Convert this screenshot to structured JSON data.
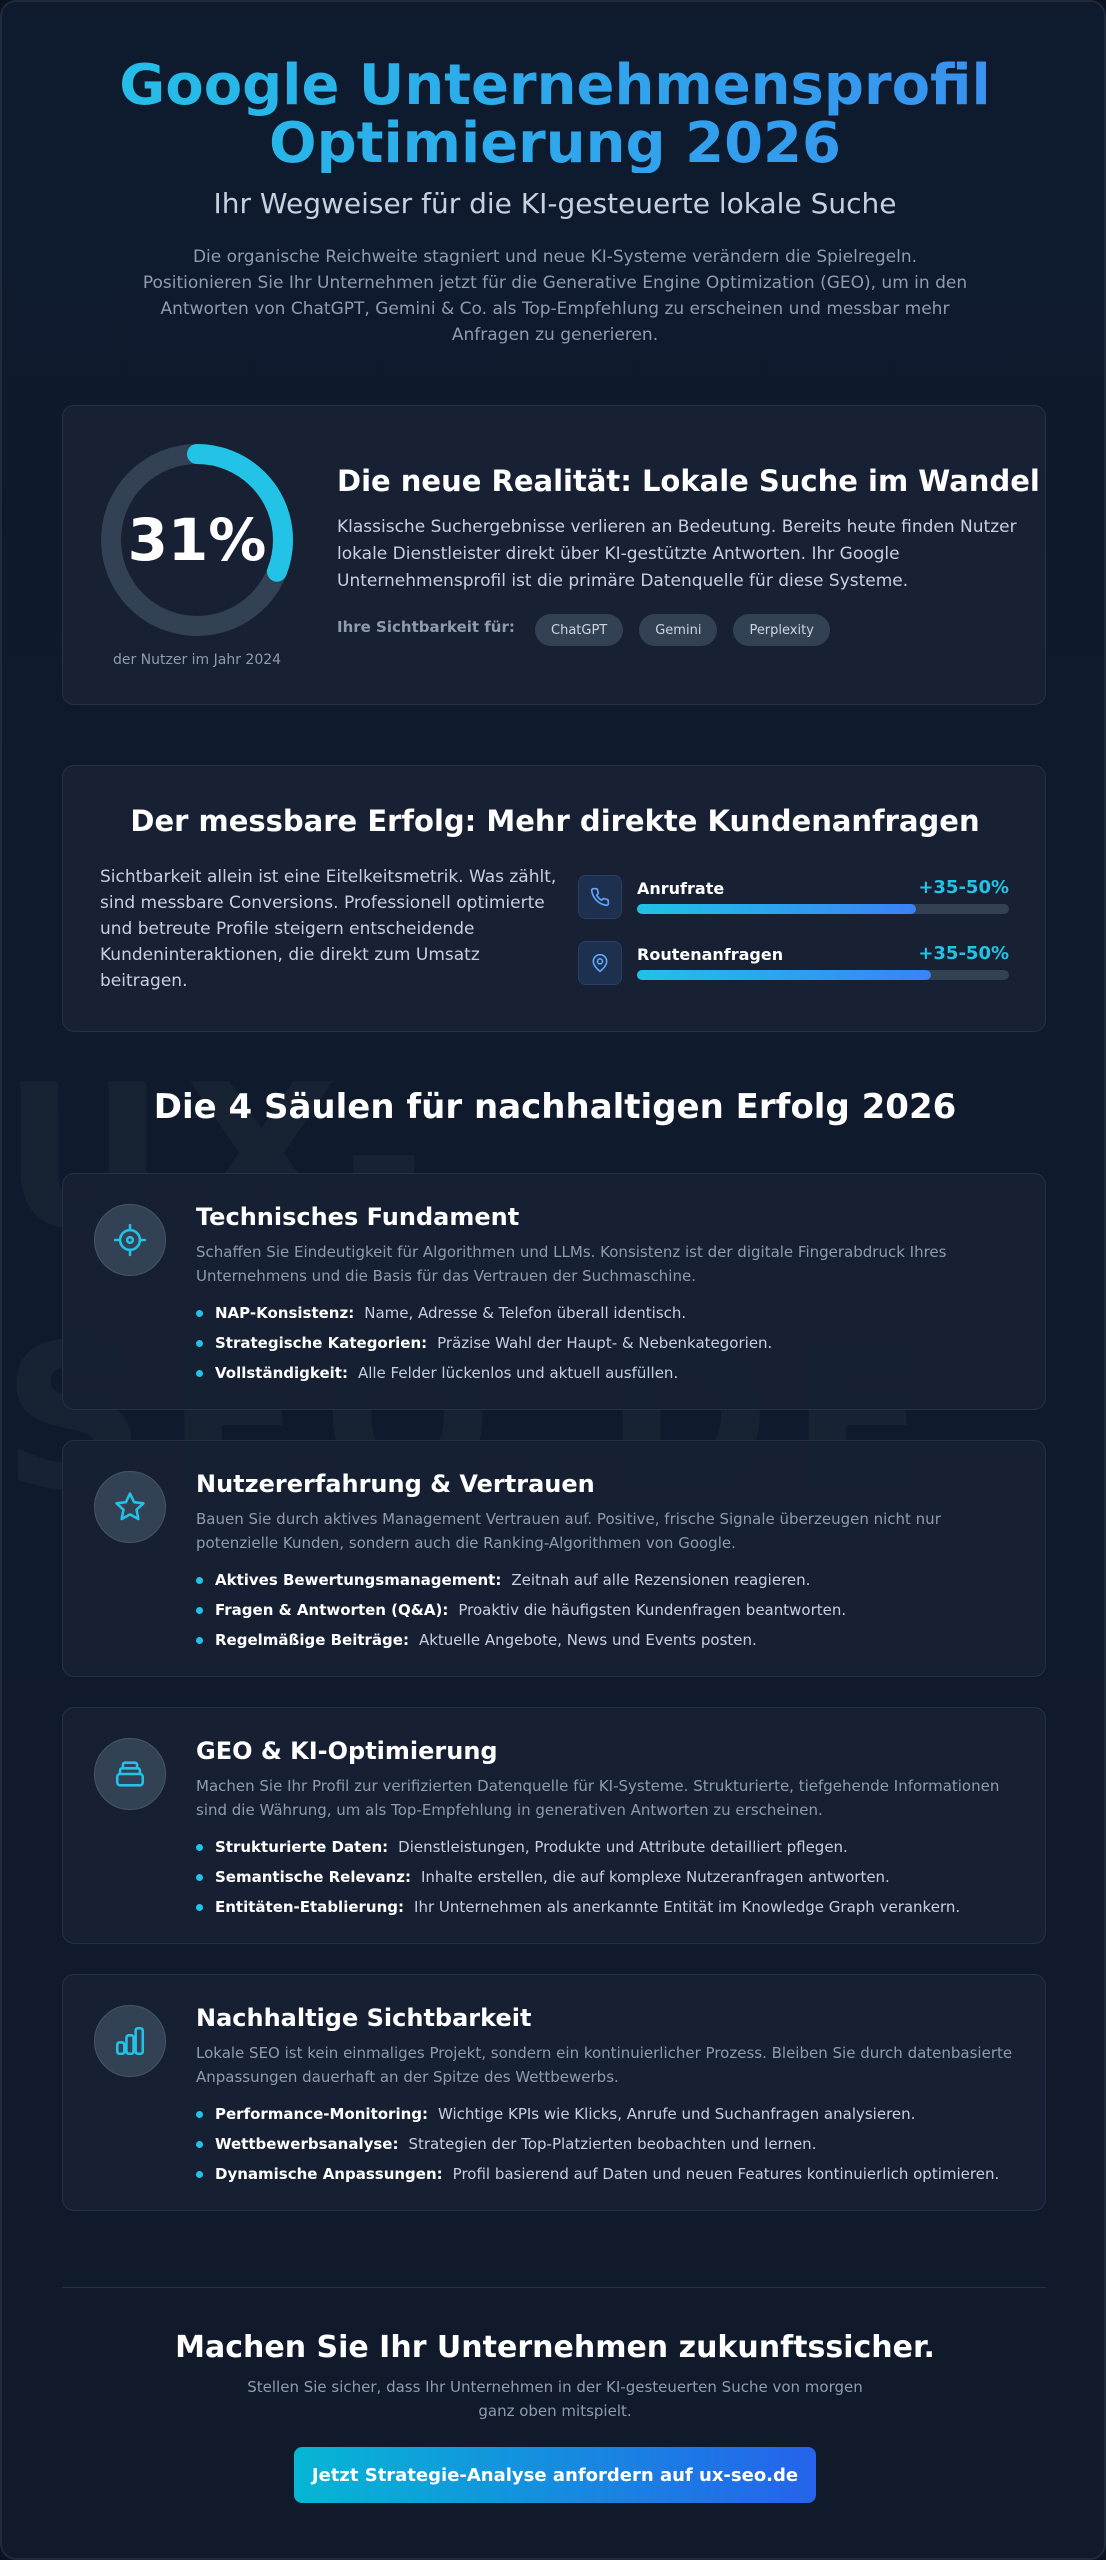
{
  "hero": {
    "title_line1": "Google Unternehmensprofil",
    "title_line2": "Optimierung 2026",
    "subtitle": "Ihr Wegweiser für die KI-gesteuerte lokale Suche",
    "intro": "Die organische Reichweite stagniert und neue KI-Systeme verändern die Spielregeln. Positionieren Sie Ihr Unternehmen jetzt für die Generative Engine Optimization (GEO), um in den Antworten von ChatGPT, Gemini & Co. als Top-Empfehlung zu erscheinen und messbar mehr Anfragen zu generieren."
  },
  "watermark": {
    "line1": "UX-",
    "line2": "SEO.DE"
  },
  "reality": {
    "stat_value": "31%",
    "stat_fraction": 0.31,
    "stat_caption": "der Nutzer im Jahr 2024",
    "title": "Die neue Realität: Lokale Suche im Wandel",
    "text": "Klassische Suchergebnisse verlieren an Bedeutung. Bereits heute finden Nutzer lokale Dienstleister direkt über KI-gestützte Antworten. Ihr Google Unternehmensprofil ist die primäre Datenquelle für diese Systeme.",
    "visibility_label": "Ihre Sichtbarkeit für:",
    "platforms": [
      "ChatGPT",
      "Gemini",
      "Perplexity"
    ],
    "colors": {
      "ring": "#22c3e6",
      "track": "#334155"
    }
  },
  "success": {
    "title": "Der messbare Erfolg: Mehr direkte Kundenanfragen",
    "text": "Sichtbarkeit allein ist eine Eitelkeitsmetrik. Was zählt, sind messbare Conversions. Professionell optimierte und betreute Profile steigern entscheidende Kundeninteraktionen, die direkt zum Umsatz beitragen.",
    "metrics": [
      {
        "label": "Anrufrate",
        "value": "+35-50%",
        "icon": "phone-icon",
        "fill": 0.75
      },
      {
        "label": "Routenanfragen",
        "value": "+35-50%",
        "icon": "map-pin-icon",
        "fill": 0.79
      }
    ]
  },
  "pillars": {
    "title": "Die 4 Säulen für nachhaltigen Erfolg 2026",
    "items": [
      {
        "icon": "crosshair-icon",
        "title": "Technisches Fundament",
        "desc": "Schaffen Sie Eindeutigkeit für Algorithmen und LLMs. Konsistenz ist der digitale Fingerabdruck Ihres Unternehmens und die Basis für das Vertrauen der Suchmaschine.",
        "points": [
          {
            "label": "NAP-Konsistenz:",
            "text": "Name, Adresse & Telefon überall identisch."
          },
          {
            "label": "Strategische Kategorien:",
            "text": "Präzise Wahl der Haupt- & Nebenkategorien."
          },
          {
            "label": "Vollständigkeit:",
            "text": "Alle Felder lückenlos und aktuell ausfüllen."
          }
        ]
      },
      {
        "icon": "star-icon",
        "title": "Nutzererfahrung & Vertrauen",
        "desc": "Bauen Sie durch aktives Management Vertrauen auf. Positive, frische Signale überzeugen nicht nur potenzielle Kunden, sondern auch die Ranking-Algorithmen von Google.",
        "points": [
          {
            "label": "Aktives Bewertungsmanagement:",
            "text": "Zeitnah auf alle Rezensionen reagieren."
          },
          {
            "label": "Fragen & Antworten (Q&A):",
            "text": "Proaktiv die häufigsten Kundenfragen beantworten."
          },
          {
            "label": "Regelmäßige Beiträge:",
            "text": "Aktuelle Angebote, News und Events posten."
          }
        ]
      },
      {
        "icon": "layers-icon",
        "title": "GEO & KI-Optimierung",
        "desc": "Machen Sie Ihr Profil zur verifizierten Datenquelle für KI-Systeme. Strukturierte, tiefgehende Informationen sind die Währung, um als Top-Empfehlung in generativen Antworten zu erscheinen.",
        "points": [
          {
            "label": "Strukturierte Daten:",
            "text": "Dienstleistungen, Produkte und Attribute detailliert pflegen."
          },
          {
            "label": "Semantische Relevanz:",
            "text": "Inhalte erstellen, die auf komplexe Nutzeranfragen antworten."
          },
          {
            "label": "Entitäten-Etablierung:",
            "text": "Ihr Unternehmen als anerkannte Entität im Knowledge Graph verankern."
          }
        ]
      },
      {
        "icon": "bar-chart-icon",
        "title": "Nachhaltige Sichtbarkeit",
        "desc": "Lokale SEO ist kein einmaliges Projekt, sondern ein kontinuierlicher Prozess. Bleiben Sie durch datenbasierte Anpassungen dauerhaft an der Spitze des Wettbewerbs.",
        "points": [
          {
            "label": "Performance-Monitoring:",
            "text": "Wichtige KPIs wie Klicks, Anrufe und Suchanfragen analysieren."
          },
          {
            "label": "Wettbewerbsanalyse:",
            "text": "Strategien der Top-Platzierten beobachten und lernen."
          },
          {
            "label": "Dynamische Anpassungen:",
            "text": "Profil basierend auf Daten und neuen Features kontinuierlich optimieren."
          }
        ]
      }
    ]
  },
  "cta": {
    "title": "Machen Sie Ihr Unternehmen zukunftssicher.",
    "text": "Stellen Sie sicher, dass Ihr Unternehmen in der KI-gesteuerten Suche von morgen ganz oben mitspielt.",
    "button": "Jetzt Strategie-Analyse anfordern auf ux-seo.de"
  }
}
